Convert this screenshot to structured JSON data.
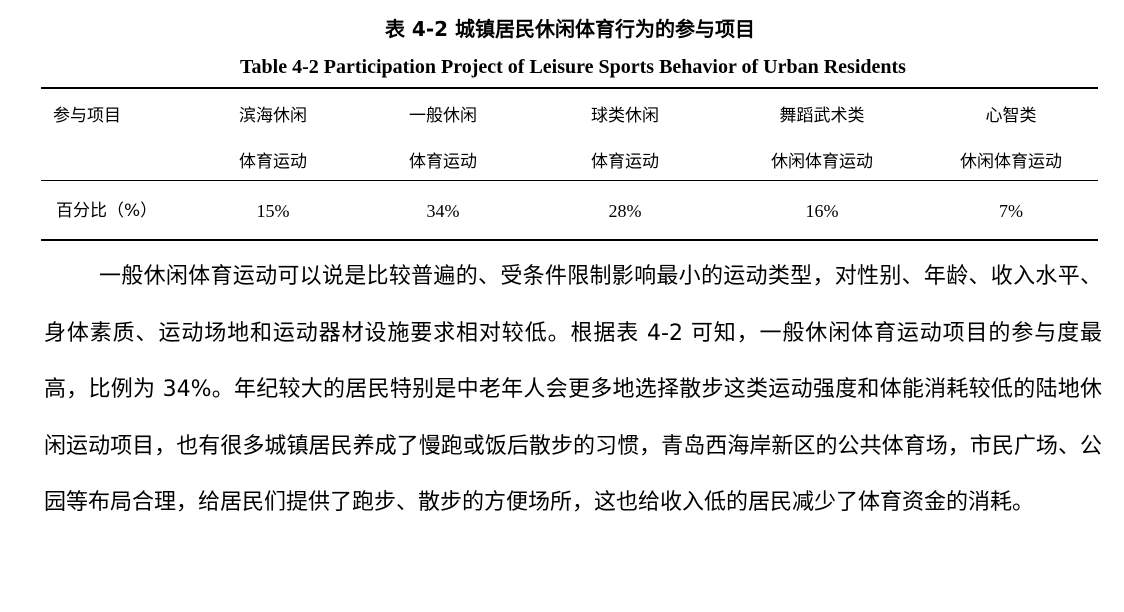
{
  "caption": {
    "title_cn": "表 4-2  城镇居民休闲体育行为的参与项目",
    "title_en": "Table 4-2 Participation Project of Leisure Sports Behavior of Urban Residents"
  },
  "table": {
    "headers": [
      {
        "line1": "参与项目",
        "line2": ""
      },
      {
        "line1": "滨海休闲",
        "line2": "体育运动"
      },
      {
        "line1": "一般休闲",
        "line2": "体育运动"
      },
      {
        "line1": "球类休闲",
        "line2": "体育运动"
      },
      {
        "line1": "舞蹈武术类",
        "line2": "休闲体育运动"
      },
      {
        "line1": "心智类",
        "line2": "休闲体育运动"
      }
    ],
    "row": {
      "label": "百分比（%）",
      "values": [
        "15%",
        "34%",
        "28%",
        "16%",
        "7%"
      ]
    }
  },
  "body": {
    "paragraph": "一般休闲体育运动可以说是比较普遍的、受条件限制影响最小的运动类型，对性别、年龄、收入水平、身体素质、运动场地和运动器材设施要求相对较低。根据表 4-2 可知，一般休闲体育运动项目的参与度最高，比例为 34%。年纪较大的居民特别是中老年人会更多地选择散步这类运动强度和体能消耗较低的陆地休闲运动项目，也有很多城镇居民养成了慢跑或饭后散步的习惯，青岛西海岸新区的公共体育场，市民广场、公园等布局合理，给居民们提供了跑步、散步的方便场所，这也给收入低的居民减少了体育资金的消耗。"
  }
}
